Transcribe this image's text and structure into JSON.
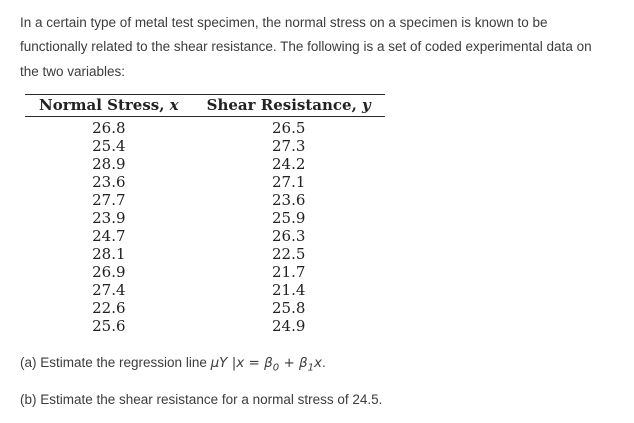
{
  "intro": {
    "text": "In a certain type of metal test specimen, the normal stress on a specimen is known to be functionally related to the shear resistance. The following is a set of coded experimental data on the two variables:"
  },
  "table": {
    "headers": [
      {
        "label": "Normal Stress, ",
        "var": "x"
      },
      {
        "label": "Shear Resistance, ",
        "var": "y"
      }
    ],
    "rows": [
      [
        "26.8",
        "26.5"
      ],
      [
        "25.4",
        "27.3"
      ],
      [
        "28.9",
        "24.2"
      ],
      [
        "23.6",
        "27.1"
      ],
      [
        "27.7",
        "23.6"
      ],
      [
        "23.9",
        "25.9"
      ],
      [
        "24.7",
        "26.3"
      ],
      [
        "28.1",
        "22.5"
      ],
      [
        "26.9",
        "21.7"
      ],
      [
        "27.4",
        "21.4"
      ],
      [
        "22.6",
        "25.8"
      ],
      [
        "25.6",
        "24.9"
      ]
    ]
  },
  "questions": {
    "a": {
      "prefix": "(a) Estimate the regression line ",
      "m1": "μY |x = β",
      "s0": "0",
      "m2": " + β",
      "s1": "1",
      "m3": "x",
      "period": "."
    },
    "b": "(b) Estimate the shear resistance for a normal stress of 24.5."
  }
}
